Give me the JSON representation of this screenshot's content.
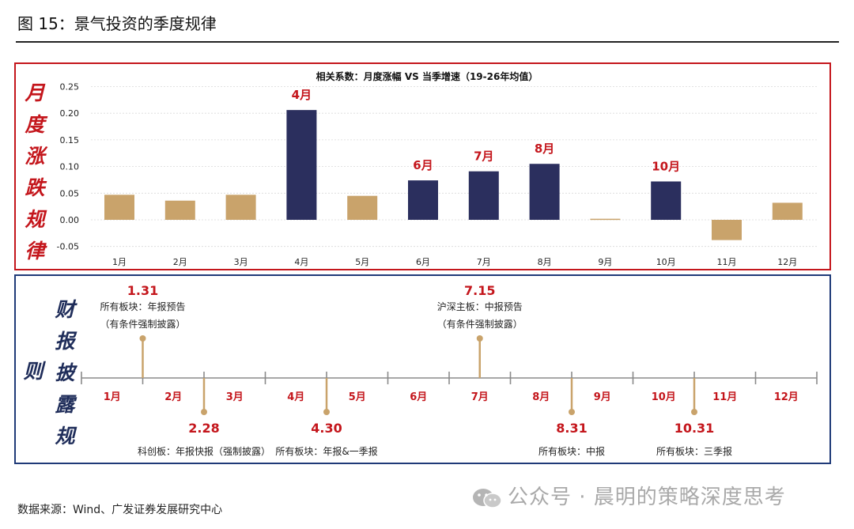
{
  "figure": {
    "title": "图 15：景气投资的季度规律",
    "source": "数据来源：Wind、广发证券发展研究中心",
    "watermark": "公众号 · 晨明的策略深度思考"
  },
  "top_panel": {
    "side_label": [
      "月",
      "度",
      "涨",
      "跌",
      "规",
      "律"
    ]
  },
  "bottom_panel": {
    "side_label_a": [
      "财",
      "报",
      "披",
      "露",
      "规"
    ],
    "side_label_b": [
      "则"
    ],
    "months": [
      "1月",
      "2月",
      "3月",
      "4月",
      "5月",
      "6月",
      "7月",
      "8月",
      "9月",
      "10月",
      "11月",
      "12月"
    ],
    "events": [
      {
        "date": "1.31",
        "lines": [
          "所有板块：年报预告",
          "（有条件强制披露）"
        ],
        "side": "up",
        "month_pos": 1.0
      },
      {
        "date": "2.28",
        "lines": [
          "科创板：年报快报（强制披露）"
        ],
        "side": "down",
        "month_pos": 2.0
      },
      {
        "date": "4.30",
        "lines": [
          "所有板块：年报&一季报"
        ],
        "side": "down",
        "month_pos": 4.0
      },
      {
        "date": "7.15",
        "lines": [
          "沪深主板：中报预告",
          "（有条件强制披露）"
        ],
        "side": "up",
        "month_pos": 6.5
      },
      {
        "date": "8.31",
        "lines": [
          "所有板块：中报"
        ],
        "side": "down",
        "month_pos": 8.0
      },
      {
        "date": "10.31",
        "lines": [
          "所有板块：三季报"
        ],
        "side": "down",
        "month_pos": 10.0
      }
    ]
  },
  "chart_data": {
    "type": "bar",
    "title": "相关系数：月度涨幅 VS 当季增速（19-26年均值）",
    "categories": [
      "1月",
      "2月",
      "3月",
      "4月",
      "5月",
      "6月",
      "7月",
      "8月",
      "9月",
      "10月",
      "11月",
      "12月"
    ],
    "values": [
      0.047,
      0.036,
      0.047,
      0.206,
      0.045,
      0.074,
      0.091,
      0.105,
      0.002,
      0.072,
      -0.038,
      0.032
    ],
    "highlight": [
      false,
      false,
      false,
      true,
      false,
      true,
      true,
      true,
      false,
      true,
      false,
      false
    ],
    "highlight_labels": [
      "",
      "",
      "",
      "4月",
      "",
      "6月",
      "7月",
      "8月",
      "",
      "10月",
      "",
      ""
    ],
    "yticks": [
      "0.25",
      "0.20",
      "0.15",
      "0.10",
      "0.05",
      "0.00",
      "-0.05"
    ],
    "ylim": [
      -0.05,
      0.25
    ],
    "colors": {
      "normal": "#c9a36b",
      "highlight": "#2b2f5e",
      "label": "#c4161c"
    },
    "grid": true,
    "legend": "none"
  }
}
